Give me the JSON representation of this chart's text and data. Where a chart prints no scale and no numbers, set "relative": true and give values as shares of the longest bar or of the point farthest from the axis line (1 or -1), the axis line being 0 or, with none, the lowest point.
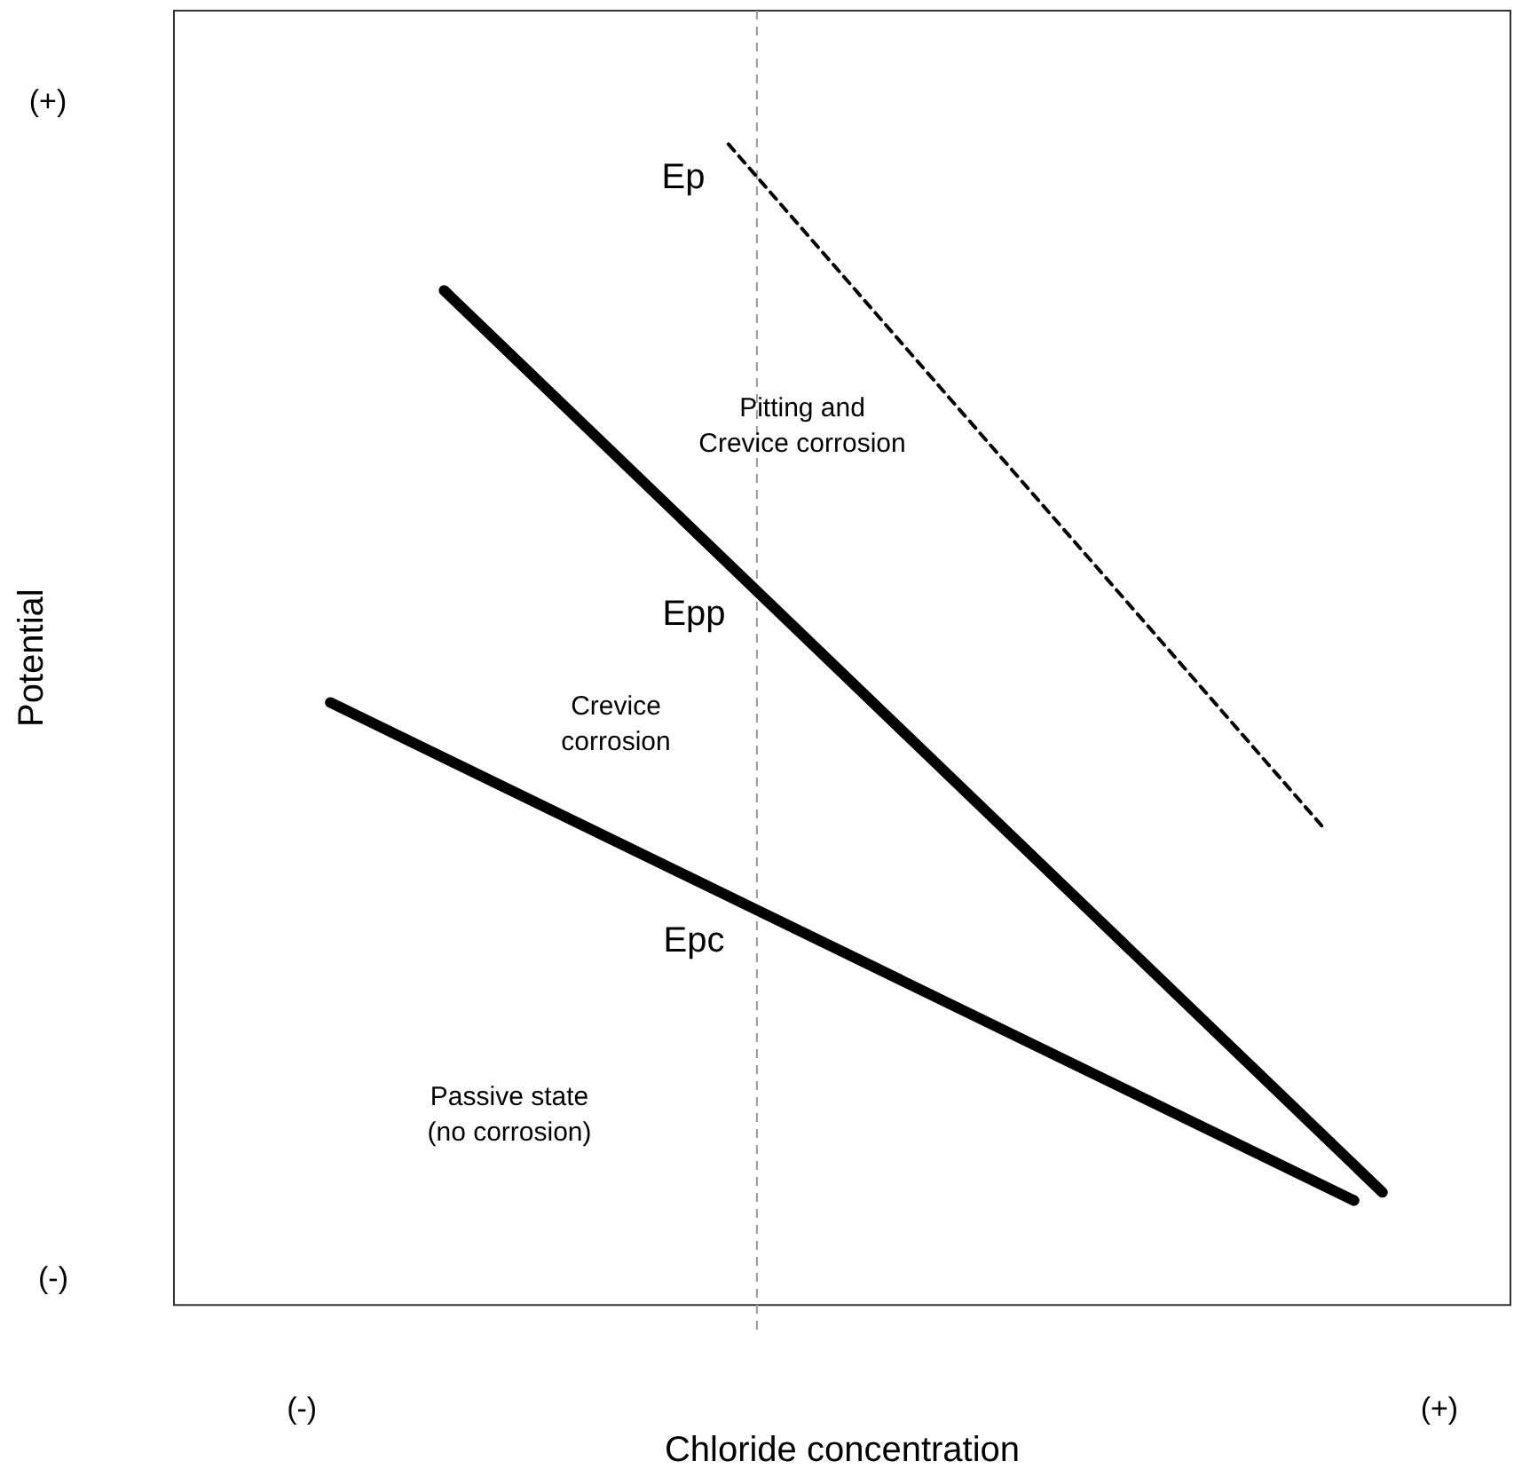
{
  "chart_data": {
    "type": "line",
    "xlabel": "Chloride concentration",
    "ylabel": "Potential",
    "relative": true,
    "categories": [
      null,
      null,
      null,
      null,
      "(-)",
      null,
      null,
      null,
      null,
      null,
      null,
      null,
      null,
      null,
      null,
      null,
      null,
      null,
      null,
      null,
      null,
      null,
      null,
      null,
      null,
      null,
      null,
      null,
      null,
      null,
      null,
      null,
      null,
      null,
      null,
      null,
      null,
      null,
      null,
      null,
      null,
      null,
      null,
      null,
      "(+)",
      null,
      null
    ],
    "legend": false,
    "marker": "none",
    "series": [
      {
        "name": "Ep",
        "color": "#000000",
        "line_style": "dashed",
        "values": [
          null,
          null,
          null,
          null,
          null,
          null,
          null,
          null,
          null,
          null,
          null,
          null,
          null,
          null,
          null,
          null,
          null,
          null,
          null,
          1.0,
          null,
          null,
          null,
          null,
          null,
          null,
          null,
          null,
          null,
          null,
          null,
          null,
          null,
          null,
          null,
          null,
          null,
          null,
          null,
          null,
          0.409,
          null,
          null,
          null,
          null,
          null,
          null
        ]
      },
      {
        "name": "Epp",
        "color": "#000000",
        "line_style": "solid",
        "values": [
          null,
          null,
          null,
          null,
          null,
          null,
          null,
          null,
          null,
          0.874,
          null,
          null,
          null,
          null,
          null,
          null,
          null,
          null,
          null,
          null,
          null,
          null,
          null,
          null,
          null,
          null,
          null,
          null,
          null,
          null,
          null,
          null,
          null,
          null,
          null,
          null,
          null,
          null,
          null,
          null,
          null,
          null,
          0.097,
          null,
          null,
          null,
          null
        ]
      },
      {
        "name": "Epc",
        "color": "#000000",
        "line_style": "solid",
        "values": [
          null,
          null,
          null,
          null,
          null,
          0.519,
          null,
          null,
          null,
          null,
          null,
          null,
          null,
          null,
          null,
          null,
          null,
          null,
          null,
          null,
          null,
          null,
          null,
          null,
          null,
          null,
          null,
          null,
          null,
          null,
          null,
          null,
          null,
          null,
          null,
          null,
          null,
          null,
          null,
          null,
          null,
          0.09,
          null,
          null,
          null,
          null,
          null
        ]
      }
    ],
    "annotations": [
      "Pitting and\nCrevice corrosion",
      "Crevice\ncorrosion",
      "Passive state\n(no corrosion)",
      "(+)",
      "(-)"
    ]
  }
}
